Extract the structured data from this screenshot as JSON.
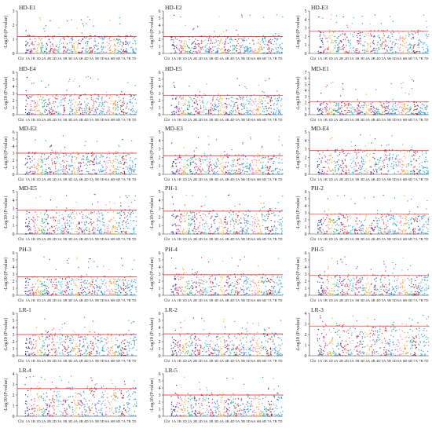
{
  "figure": {
    "ylabel": "-Log10 (P-value)",
    "chr_prefix": "Chr",
    "chromosomes": [
      "1A",
      "1B",
      "1D",
      "2A",
      "2B",
      "2D",
      "3A",
      "3B",
      "3D",
      "4A",
      "4B",
      "4D",
      "5A",
      "5B",
      "5D",
      "6A",
      "6B",
      "6D",
      "7A",
      "7B",
      "7D"
    ],
    "chromosome_colors": [
      "#2a2f8a",
      "#d13c8a",
      "#e8a42a",
      "#1b9e77",
      "#7a2a9a",
      "#e43e3e",
      "#4cc4e0",
      "#c22a6a",
      "#3a7fd0",
      "#f2b134",
      "#8b2a7e",
      "#3aa09a",
      "#c93a2a",
      "#5a6ad0",
      "#1f9cc8",
      "#f07dbb",
      "#ff9a2a",
      "#2aa0a8",
      "#8b1a2a",
      "#3f8fe0",
      "#2aa0d8"
    ],
    "threshold_color": "#e31a1c"
  },
  "chart_data": [
    {
      "type": "scatter",
      "label": "HD-E1",
      "yticks": [
        0,
        1,
        2,
        3
      ],
      "ylim": [
        0,
        3
      ],
      "threshold": 1.2
    },
    {
      "type": "scatter",
      "label": "HD-E2",
      "yticks": [
        0,
        1,
        2,
        3,
        4,
        5,
        6
      ],
      "ylim": [
        0,
        6
      ],
      "threshold": 2.4
    },
    {
      "type": "scatter",
      "label": "HD-E3",
      "yticks": [
        0,
        1,
        2,
        3,
        4,
        5
      ],
      "ylim": [
        0,
        5
      ],
      "threshold": 2.6
    },
    {
      "type": "scatter",
      "label": "HD-E4",
      "yticks": [
        0,
        1,
        2,
        3,
        4,
        5,
        6
      ],
      "ylim": [
        0,
        6
      ],
      "threshold": 2.8
    },
    {
      "type": "scatter",
      "label": "HD-E5",
      "yticks": [
        0,
        1,
        2,
        3,
        4,
        5,
        6
      ],
      "ylim": [
        0,
        6
      ],
      "threshold": 2.7
    },
    {
      "type": "scatter",
      "label": "MD-E1",
      "yticks": [
        0,
        1,
        2,
        3,
        4,
        5,
        6,
        7
      ],
      "ylim": [
        0,
        7
      ],
      "threshold": 2.1
    },
    {
      "type": "scatter",
      "label": "MD-E2",
      "yticks": [
        0,
        1,
        2,
        3,
        4,
        5,
        6
      ],
      "ylim": [
        0,
        6
      ],
      "threshold": 3.0
    },
    {
      "type": "scatter",
      "label": "MD-E3",
      "yticks": [
        0,
        1,
        2,
        3,
        4,
        5
      ],
      "ylim": [
        0,
        5
      ],
      "threshold": 2.2
    },
    {
      "type": "scatter",
      "label": "MD-E4",
      "yticks": [
        0,
        1,
        2,
        3,
        4,
        5
      ],
      "ylim": [
        0,
        5
      ],
      "threshold": 2.8
    },
    {
      "type": "scatter",
      "label": "MD-E5",
      "yticks": [
        0,
        1,
        2,
        3,
        4,
        5
      ],
      "ylim": [
        0,
        5
      ],
      "threshold": 2.8
    },
    {
      "type": "scatter",
      "label": "PH-1",
      "yticks": [
        0,
        1,
        2,
        3,
        4,
        5
      ],
      "ylim": [
        0,
        5
      ],
      "threshold": 2.7
    },
    {
      "type": "scatter",
      "label": "PH-2",
      "yticks": [
        0,
        1,
        2,
        3,
        4,
        5,
        6
      ],
      "ylim": [
        0,
        6
      ],
      "threshold": 2.8
    },
    {
      "type": "scatter",
      "label": "PH-3",
      "yticks": [
        0,
        1,
        2,
        3,
        4,
        5,
        6
      ],
      "ylim": [
        0,
        6
      ],
      "threshold": 2.6
    },
    {
      "type": "scatter",
      "label": "PH-4",
      "yticks": [
        0,
        1,
        2,
        3,
        4,
        5,
        6
      ],
      "ylim": [
        0,
        6
      ],
      "threshold": 2.9
    },
    {
      "type": "scatter",
      "label": "PH-5",
      "yticks": [
        0,
        1,
        2,
        3,
        4,
        5,
        6
      ],
      "ylim": [
        0,
        6
      ],
      "threshold": 2.8
    },
    {
      "type": "scatter",
      "label": "LR-1",
      "yticks": [
        0,
        1,
        2,
        3,
        4,
        5,
        6
      ],
      "ylim": [
        0,
        6
      ],
      "threshold": 3.0
    },
    {
      "type": "scatter",
      "label": "LR-2",
      "yticks": [
        0,
        1,
        2,
        3,
        4,
        5,
        6
      ],
      "ylim": [
        0,
        6
      ],
      "threshold": 3.1
    },
    {
      "type": "scatter",
      "label": "LR-3",
      "yticks": [
        0,
        1,
        2,
        3,
        4
      ],
      "ylim": [
        0,
        4
      ],
      "threshold": 2.8
    },
    {
      "type": "scatter",
      "label": "LR-4",
      "yticks": [
        0,
        1,
        2,
        3,
        4
      ],
      "ylim": [
        0,
        4
      ],
      "threshold": 2.6
    },
    {
      "type": "scatter",
      "label": "LR-5",
      "yticks": [
        0,
        1,
        2,
        3,
        4,
        5,
        6
      ],
      "ylim": [
        0,
        6
      ],
      "threshold": 3.0
    }
  ]
}
